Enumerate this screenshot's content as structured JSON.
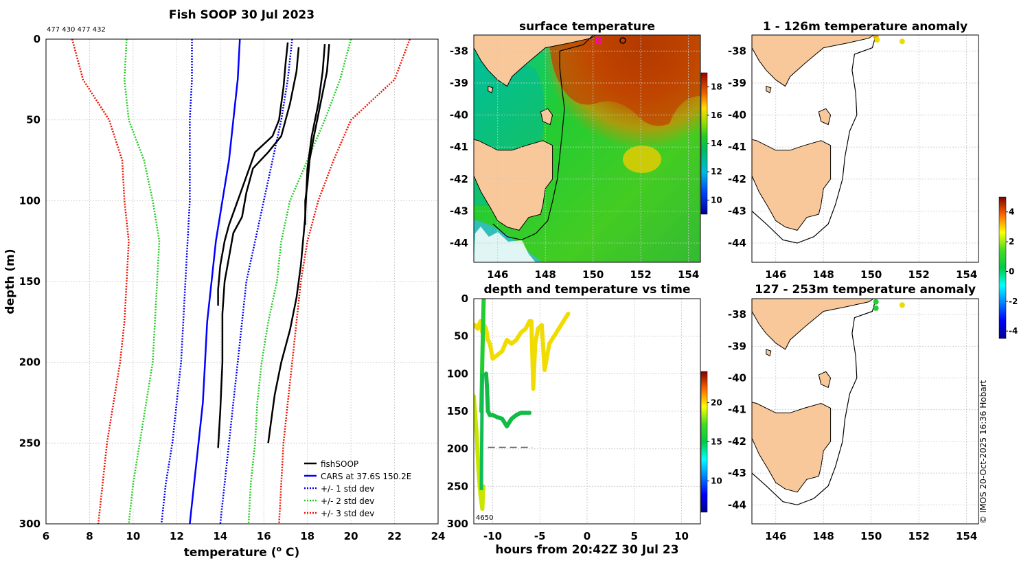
{
  "chart_data": [
    {
      "id": "profile",
      "type": "line",
      "title": "Fish SOOP 30 Jul 2023",
      "ids_label": "477 430 477 432",
      "xlabel": "temperature (",
      "xlabel_sup": "o",
      "xlabel_end": " C)",
      "ylabel": "depth (m)",
      "xlim": [
        6,
        24
      ],
      "ylim": [
        300,
        0
      ],
      "xticks": [
        6,
        8,
        10,
        12,
        14,
        16,
        18,
        20,
        22,
        24
      ],
      "yticks": [
        0,
        50,
        100,
        150,
        200,
        250,
        300
      ],
      "legend": [
        "fishSOOP",
        "CARS at 37.6S 150.2E",
        "+/- 1 std dev",
        "+/- 2 std dev",
        "+/- 3 std dev"
      ],
      "cars_mean": {
        "depth": [
          0,
          25,
          50,
          75,
          100,
          125,
          150,
          175,
          200,
          225,
          250,
          275,
          300
        ],
        "temp": [
          14.9,
          14.8,
          14.6,
          14.4,
          14.1,
          13.8,
          13.6,
          13.4,
          13.3,
          13.2,
          13.0,
          12.8,
          12.6
        ]
      },
      "std_pm1": {
        "left": [
          12.7,
          12.7,
          12.6,
          12.6,
          12.6,
          12.5,
          12.4,
          12.3,
          12.2,
          12.0,
          11.8,
          11.5,
          11.3
        ],
        "right": [
          17.3,
          17.1,
          16.8,
          16.4,
          16.0,
          15.6,
          15.2,
          15.0,
          14.8,
          14.6,
          14.4,
          14.2,
          14.0
        ]
      },
      "std_pm2": {
        "left": [
          9.7,
          9.6,
          9.8,
          10.5,
          10.9,
          11.2,
          11.1,
          11.0,
          10.9,
          10.6,
          10.3,
          10.0,
          9.8
        ],
        "right": [
          20.0,
          19.5,
          18.8,
          18.0,
          17.2,
          16.8,
          16.6,
          16.2,
          15.9,
          15.7,
          15.6,
          15.4,
          15.3
        ]
      },
      "std_pm3": {
        "left": [
          7.2,
          7.7,
          8.9,
          9.5,
          9.6,
          9.8,
          9.7,
          9.6,
          9.4,
          9.1,
          8.8,
          8.6,
          8.4
        ],
        "right": [
          22.7,
          22.0,
          20.0,
          19.2,
          18.5,
          18.0,
          17.7,
          17.5,
          17.3,
          17.1,
          16.9,
          16.8,
          16.7
        ]
      },
      "fishsoop_profiles": [
        {
          "depth": [
            2,
            15,
            30,
            50,
            60,
            70,
            85,
            100,
            115,
            125,
            140,
            155,
            165
          ],
          "temp": [
            17.1,
            17.0,
            16.9,
            16.7,
            16.4,
            15.6,
            15.2,
            14.8,
            14.4,
            14.2,
            14.0,
            13.9,
            13.9
          ]
        },
        {
          "depth": [
            5,
            20,
            40,
            60,
            70,
            80,
            95,
            110,
            120,
            135,
            150,
            170,
            200,
            230,
            253
          ],
          "temp": [
            17.6,
            17.5,
            17.2,
            16.8,
            16.2,
            15.5,
            15.2,
            15.0,
            14.6,
            14.4,
            14.2,
            14.1,
            14.1,
            14.0,
            13.9
          ]
        },
        {
          "depth": [
            3,
            20,
            40,
            60,
            75,
            90,
            100,
            110,
            115
          ],
          "temp": [
            19.0,
            18.9,
            18.6,
            18.3,
            18.1,
            18.0,
            17.9,
            17.9,
            17.9
          ]
        },
        {
          "depth": [
            3,
            20,
            40,
            60,
            80,
            110,
            140,
            160,
            180,
            200,
            220,
            240,
            250
          ],
          "temp": [
            18.8,
            18.7,
            18.5,
            18.2,
            18.0,
            17.9,
            17.7,
            17.5,
            17.2,
            16.8,
            16.5,
            16.3,
            16.2
          ]
        }
      ]
    },
    {
      "id": "sst",
      "type": "heatmap",
      "title": "surface temperature",
      "xlim": [
        145,
        154.5
      ],
      "ylim": [
        -44.6,
        -37.5
      ],
      "xticks": [
        146,
        148,
        150,
        152,
        154
      ],
      "yticks": [
        -38,
        -39,
        -40,
        -41,
        -42,
        -43,
        -44
      ],
      "colorbar_ticks": [
        10,
        12,
        14,
        16,
        18
      ],
      "colorbar_range": [
        9,
        19
      ]
    },
    {
      "id": "depth_time",
      "type": "scatter",
      "title": "depth and temperature vs time",
      "xlabel": "hours from 20:42Z 30 Jul 23",
      "xlim": [
        -12,
        12
      ],
      "ylim": [
        300,
        0
      ],
      "xticks": [
        -10,
        -5,
        0,
        5,
        10
      ],
      "yticks": [
        0,
        50,
        100,
        150,
        200,
        250,
        300
      ],
      "bottom_label": "4650",
      "colorbar_ticks": [
        10,
        15,
        20
      ],
      "colorbar_range": [
        6,
        24
      ],
      "traces": [
        {
          "t": [
            -12.0,
            -11.7,
            -11.5,
            -11.3,
            -11.1,
            -11.0
          ],
          "d": [
            130,
            180,
            230,
            260,
            280,
            250
          ]
        },
        {
          "t": [
            -11.9,
            -11.6,
            -11.3,
            -11.1,
            -10.9,
            -10.7,
            -10.5,
            -10.3,
            -10.0,
            -9.5,
            -9.0,
            -8.5,
            -8.0,
            -7.5,
            -7.0,
            -6.5,
            -6.1,
            -5.9,
            -5.7,
            -5.5,
            -5.2,
            -4.8,
            -4.5,
            -4.0,
            -3.5,
            -3.0,
            -2.5,
            -2.0
          ],
          "d": [
            35,
            40,
            30,
            45,
            35,
            40,
            55,
            60,
            80,
            75,
            70,
            55,
            60,
            55,
            45,
            40,
            30,
            30,
            120,
            60,
            40,
            35,
            95,
            60,
            50,
            40,
            30,
            20
          ]
        },
        {
          "t": [
            -10.7,
            -10.6,
            -10.5,
            -10.3,
            -10.0,
            -9.5,
            -9.0,
            -8.5,
            -8.0,
            -7.5,
            -7.0,
            -6.5,
            -6.1
          ],
          "d": [
            100,
            120,
            150,
            155,
            155,
            158,
            160,
            170,
            160,
            155,
            152,
            152,
            152
          ]
        },
        {
          "t": [
            -11.2,
            -11.1,
            -10.95
          ],
          "d": [
            150,
            80,
            0
          ]
        }
      ],
      "temps": [
        19,
        20,
        14
      ],
      "dash_line": {
        "t": [
          -10.5,
          -5.8
        ],
        "d": 198
      }
    },
    {
      "id": "anom1",
      "type": "scatter",
      "title": "1 - 126m temperature anomaly",
      "xlim": [
        145,
        154.5
      ],
      "ylim": [
        -44.6,
        -37.5
      ],
      "xticks": [
        146,
        148,
        150,
        152,
        154
      ],
      "yticks": [
        -38,
        -39,
        -40,
        -41,
        -42,
        -43,
        -44
      ],
      "points": [
        {
          "lon": 150.2,
          "lat": -37.55,
          "anom": 2.2
        },
        {
          "lon": 150.25,
          "lat": -37.65,
          "anom": 2.0
        },
        {
          "lon": 151.3,
          "lat": -37.7,
          "anom": 2.0
        }
      ]
    },
    {
      "id": "anom2",
      "type": "scatter",
      "title": "127 - 253m temperature anomaly",
      "xlim": [
        145,
        154.5
      ],
      "ylim": [
        -44.6,
        -37.5
      ],
      "xticks": [
        146,
        148,
        150,
        152,
        154
      ],
      "yticks": [
        -38,
        -39,
        -40,
        -41,
        -42,
        -43,
        -44
      ],
      "points": [
        {
          "lon": 150.2,
          "lat": -37.6,
          "anom": 0.3
        },
        {
          "lon": 150.2,
          "lat": -37.8,
          "anom": 0.5
        },
        {
          "lon": 151.3,
          "lat": -37.7,
          "anom": 2.0
        }
      ]
    }
  ],
  "anomaly_colorbar": {
    "ticks": [
      -4,
      -2,
      0,
      2,
      4
    ],
    "range": [
      -4.5,
      5
    ]
  },
  "credit": "© IMOS 20-Oct-2025 16:36 Hobart"
}
